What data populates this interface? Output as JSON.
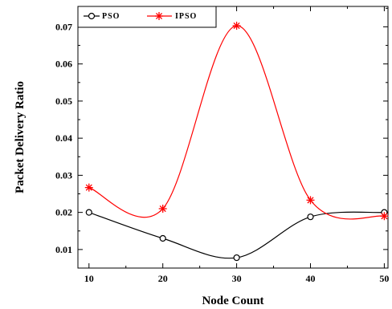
{
  "chart_data": {
    "type": "line",
    "xlabel": "Node Count",
    "ylabel": "Packet Delivery Ratio",
    "x": [
      10,
      20,
      30,
      40,
      50
    ],
    "xlim": [
      8.5,
      50.5
    ],
    "ylim": [
      0.005,
      0.0755
    ],
    "x_ticks": [
      "10",
      "20",
      "30",
      "40",
      "50"
    ],
    "y_ticks": [
      "0.01",
      "0.02",
      "0.03",
      "0.04",
      "0.05",
      "0.06",
      "0.07"
    ],
    "y_tick_values": [
      0.01,
      0.02,
      0.03,
      0.04,
      0.05,
      0.06,
      0.07
    ],
    "grid": false,
    "legend_position": "top-left",
    "series": [
      {
        "name": "PSO",
        "values": [
          0.02,
          0.013,
          0.0078,
          0.0188,
          0.02
        ],
        "color": "#000000",
        "marker": "circle"
      },
      {
        "name": "IPSO",
        "values": [
          0.0267,
          0.021,
          0.0703,
          0.0233,
          0.019
        ],
        "color": "#ff0000",
        "marker": "star"
      }
    ]
  }
}
